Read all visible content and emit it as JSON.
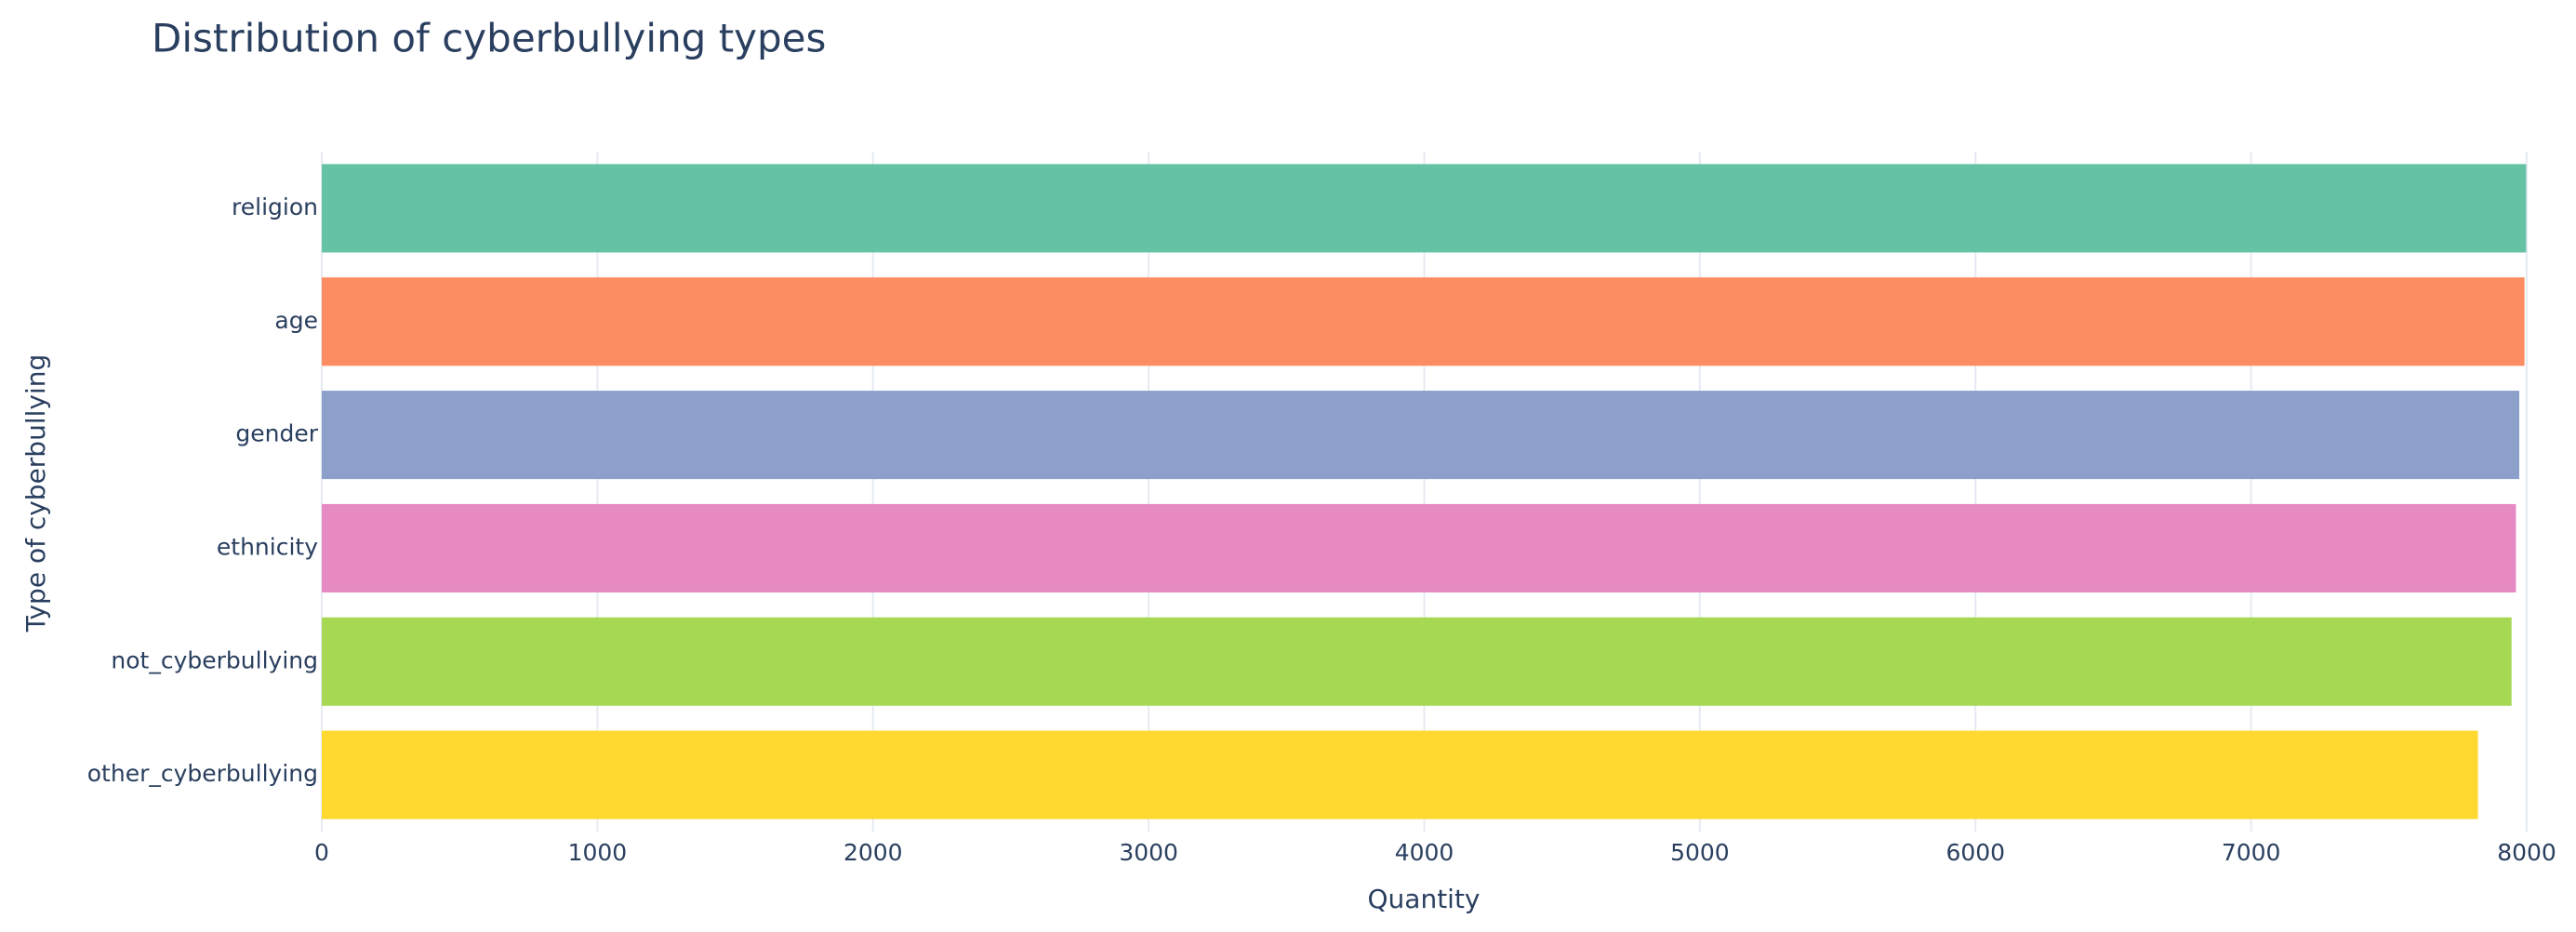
{
  "chart_data": {
    "type": "barh",
    "title": "Distribution of cyberbullying types",
    "x_label": "Quantity",
    "y_label": "Type of cyberbullying",
    "categories": [
      "religion",
      "age",
      "gender",
      "ethnicity",
      "not_cyberbullying",
      "other_cyberbullying"
    ],
    "values": [
      7998,
      7992,
      7973,
      7961,
      7945,
      7823
    ],
    "colors": [
      "#66c2a5",
      "#fc8d62",
      "#8da0cb",
      "#e78ac3",
      "#a6d854",
      "#ffd92f"
    ],
    "xlim": [
      0,
      8000
    ],
    "xticks": [
      0,
      1000,
      2000,
      3000,
      4000,
      5000,
      6000,
      7000,
      8000
    ],
    "grid": true
  }
}
